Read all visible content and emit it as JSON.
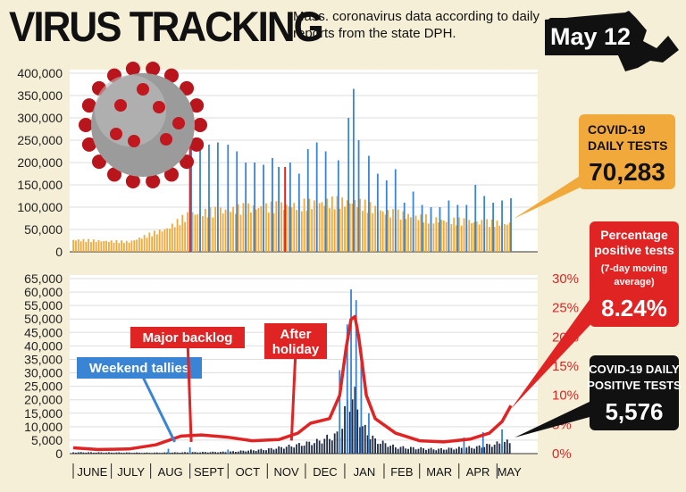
{
  "title": "VIRUS TRACKING",
  "subtitle": "Mass. coronavirus data according to daily reports from the state DPH.",
  "date_badge": "May 12",
  "colors": {
    "tests_bar": "#f2a93b",
    "tests_spike": "#3a84d6",
    "positive_bar": "#1e2a3f",
    "positive_spike": "#3a84d6",
    "pct_line": "#e02424",
    "panel_bg": "#ffffff",
    "grid": "#dedede",
    "callout_orange": "#f2a93b",
    "callout_red": "#e02424",
    "callout_black": "#111111",
    "callout_blue": "#3a84d6"
  },
  "icons": {
    "virus": "coronavirus-illustration-icon",
    "state": "massachusetts-map-icon"
  },
  "chart_data": [
    {
      "type": "bar",
      "series_name": "COVID-19 DAILY TESTS",
      "ylim": [
        0,
        400000
      ],
      "yticks": [
        "400,000",
        "350,000",
        "300,000",
        "250,000",
        "200,000",
        "150,000",
        "100,000",
        "50,000",
        "0"
      ],
      "months": [
        "JUNE",
        "JULY",
        "AUG",
        "SEPT",
        "OCT",
        "NOV",
        "DEC",
        "JAN",
        "FEB",
        "MAR",
        "APR",
        "MAY"
      ],
      "key_points": [
        {
          "date": "Jun 1",
          "value": 30000
        },
        {
          "date": "Jul 15",
          "value": 25000
        },
        {
          "date": "Aug 15",
          "value": 60000
        },
        {
          "date": "Sep 1",
          "value": 95000
        },
        {
          "date": "Oct 15",
          "value": 110000
        },
        {
          "date": "Nov 15",
          "value": 115000
        },
        {
          "date": "Dec 20",
          "value": 125000
        },
        {
          "date": "Jan 10",
          "value": 125000
        },
        {
          "date": "Feb 1",
          "value": 100000
        },
        {
          "date": "Mar 15",
          "value": 80000
        },
        {
          "date": "May 12",
          "value": 70283
        }
      ],
      "spikes": [
        {
          "date": "Sep 2",
          "value": 265000
        },
        {
          "date": "Sep 9",
          "value": 240000
        },
        {
          "date": "Sep 16",
          "value": 240000
        },
        {
          "date": "Sep 23",
          "value": 245000
        },
        {
          "date": "Oct 1",
          "value": 240000
        },
        {
          "date": "Oct 8",
          "value": 225000
        },
        {
          "date": "Oct 15",
          "value": 200000
        },
        {
          "date": "Oct 22",
          "value": 200000
        },
        {
          "date": "Oct 29",
          "value": 195000
        },
        {
          "date": "Nov 5",
          "value": 210000
        },
        {
          "date": "Nov 10",
          "value": 190000
        },
        {
          "date": "Nov 19",
          "value": 200000
        },
        {
          "date": "Nov 26",
          "value": 175000
        },
        {
          "date": "Dec 3",
          "value": 230000
        },
        {
          "date": "Dec 10",
          "value": 245000
        },
        {
          "date": "Dec 17",
          "value": 225000
        },
        {
          "date": "Dec 27",
          "value": 205000
        },
        {
          "date": "Jan 4",
          "value": 300000
        },
        {
          "date": "Jan 8",
          "value": 365000
        },
        {
          "date": "Jan 12",
          "value": 250000
        },
        {
          "date": "Jan 20",
          "value": 215000
        },
        {
          "date": "Jan 27",
          "value": 175000
        },
        {
          "date": "Feb 3",
          "value": 160000
        },
        {
          "date": "Feb 10",
          "value": 185000
        },
        {
          "date": "Feb 17",
          "value": 110000
        },
        {
          "date": "Feb 24",
          "value": 135000
        },
        {
          "date": "Mar 3",
          "value": 105000
        },
        {
          "date": "Mar 10",
          "value": 100000
        },
        {
          "date": "Mar 17",
          "value": 100000
        },
        {
          "date": "Mar 24",
          "value": 115000
        },
        {
          "date": "Mar 31",
          "value": 105000
        },
        {
          "date": "Apr 7",
          "value": 105000
        },
        {
          "date": "Apr 14",
          "value": 150000
        },
        {
          "date": "Apr 21",
          "value": 125000
        },
        {
          "date": "Apr 28",
          "value": 110000
        },
        {
          "date": "May 5",
          "value": 115000
        },
        {
          "date": "May 12",
          "value": 120000
        }
      ],
      "red_markers": [
        {
          "date": "Sep 1",
          "value": 260000
        },
        {
          "date": "Nov 15",
          "value": 190000
        }
      ],
      "callout": {
        "label": "COVID-19 DAILY TESTS",
        "value": "70,283"
      }
    },
    {
      "type": "bar+line",
      "bar_series": "COVID-19 DAILY POSITIVE TESTS",
      "line_series": "Percentage positive tests (7-day moving average)",
      "ylim": [
        0,
        65000
      ],
      "yticks": [
        "65,000",
        "60,000",
        "55,000",
        "50,000",
        "45,000",
        "40,000",
        "35,000",
        "30,000",
        "25,000",
        "20,000",
        "15,000",
        "10,000",
        "5,000",
        "0"
      ],
      "y2lim": [
        0,
        30
      ],
      "y2ticks": [
        "30%",
        "25%",
        "20%",
        "15%",
        "10%",
        "5%",
        "0%"
      ],
      "months": [
        "JUNE",
        "JULY",
        "AUG",
        "SEPT",
        "OCT",
        "NOV",
        "DEC",
        "JAN",
        "FEB",
        "MAR",
        "APR",
        "MAY"
      ],
      "bar_key_points": [
        {
          "date": "Jun 1",
          "value": 600
        },
        {
          "date": "Aug 1",
          "value": 400
        },
        {
          "date": "Oct 1",
          "value": 800
        },
        {
          "date": "Nov 1",
          "value": 2000
        },
        {
          "date": "Nov 20",
          "value": 3500
        },
        {
          "date": "Dec 10",
          "value": 5500
        },
        {
          "date": "Dec 28",
          "value": 9000
        },
        {
          "date": "Jan 4",
          "value": 25000
        },
        {
          "date": "Jan 8",
          "value": 27000
        },
        {
          "date": "Jan 15",
          "value": 12000
        },
        {
          "date": "Jan 25",
          "value": 6000
        },
        {
          "date": "Feb 10",
          "value": 3000
        },
        {
          "date": "Mar 15",
          "value": 2000
        },
        {
          "date": "Apr 15",
          "value": 3000
        },
        {
          "date": "May 12",
          "value": 5576
        }
      ],
      "bar_spikes": [
        {
          "date": "Aug 15",
          "value": 1800
        },
        {
          "date": "Sep 1",
          "value": 2300
        },
        {
          "date": "Oct 1",
          "value": 1500
        },
        {
          "date": "Dec 28",
          "value": 31000
        },
        {
          "date": "Jan 3",
          "value": 48000
        },
        {
          "date": "Jan 6",
          "value": 61000
        },
        {
          "date": "Jan 10",
          "value": 57000
        },
        {
          "date": "Jan 14",
          "value": 38000
        },
        {
          "date": "Jan 20",
          "value": 15000
        },
        {
          "date": "Apr 5",
          "value": 6000
        },
        {
          "date": "Apr 20",
          "value": 8000
        },
        {
          "date": "May 5",
          "value": 9000
        }
      ],
      "line_points": [
        {
          "date": "Jun 1",
          "value": 1.0
        },
        {
          "date": "Jun 20",
          "value": 0.7
        },
        {
          "date": "Jul 15",
          "value": 0.8
        },
        {
          "date": "Aug 5",
          "value": 1.5
        },
        {
          "date": "Aug 25",
          "value": 3.0
        },
        {
          "date": "Sep 10",
          "value": 3.2
        },
        {
          "date": "Oct 1",
          "value": 2.8
        },
        {
          "date": "Oct 20",
          "value": 2.2
        },
        {
          "date": "Nov 10",
          "value": 2.4
        },
        {
          "date": "Nov 25",
          "value": 3.5
        },
        {
          "date": "Dec 5",
          "value": 5.2
        },
        {
          "date": "Dec 20",
          "value": 6.0
        },
        {
          "date": "Dec 28",
          "value": 10.0
        },
        {
          "date": "Jan 2",
          "value": 18.0
        },
        {
          "date": "Jan 6",
          "value": 23.0
        },
        {
          "date": "Jan 9",
          "value": 23.5
        },
        {
          "date": "Jan 12",
          "value": 20.0
        },
        {
          "date": "Jan 18",
          "value": 10.0
        },
        {
          "date": "Jan 25",
          "value": 6.0
        },
        {
          "date": "Feb 10",
          "value": 3.5
        },
        {
          "date": "Mar 1",
          "value": 2.2
        },
        {
          "date": "Mar 20",
          "value": 2.0
        },
        {
          "date": "Apr 10",
          "value": 2.5
        },
        {
          "date": "Apr 25",
          "value": 3.5
        },
        {
          "date": "May 5",
          "value": 5.5
        },
        {
          "date": "May 12",
          "value": 8.24
        }
      ],
      "annotations": [
        {
          "label": "Weekend tallies",
          "date": "Aug 20",
          "value": 3000,
          "color": "blue"
        },
        {
          "label": "Major backlog",
          "date": "Sep 2",
          "value": 3000,
          "color": "red"
        },
        {
          "label": "After holiday",
          "date": "Nov 20",
          "value": 3500,
          "color": "red"
        }
      ],
      "callouts": [
        {
          "label": "Percentage positive tests",
          "sublabel": "(7-day moving average)",
          "value": "8.24%"
        },
        {
          "label": "COVID-19 DAILY POSITIVE TESTS",
          "value": "5,576"
        }
      ]
    }
  ]
}
